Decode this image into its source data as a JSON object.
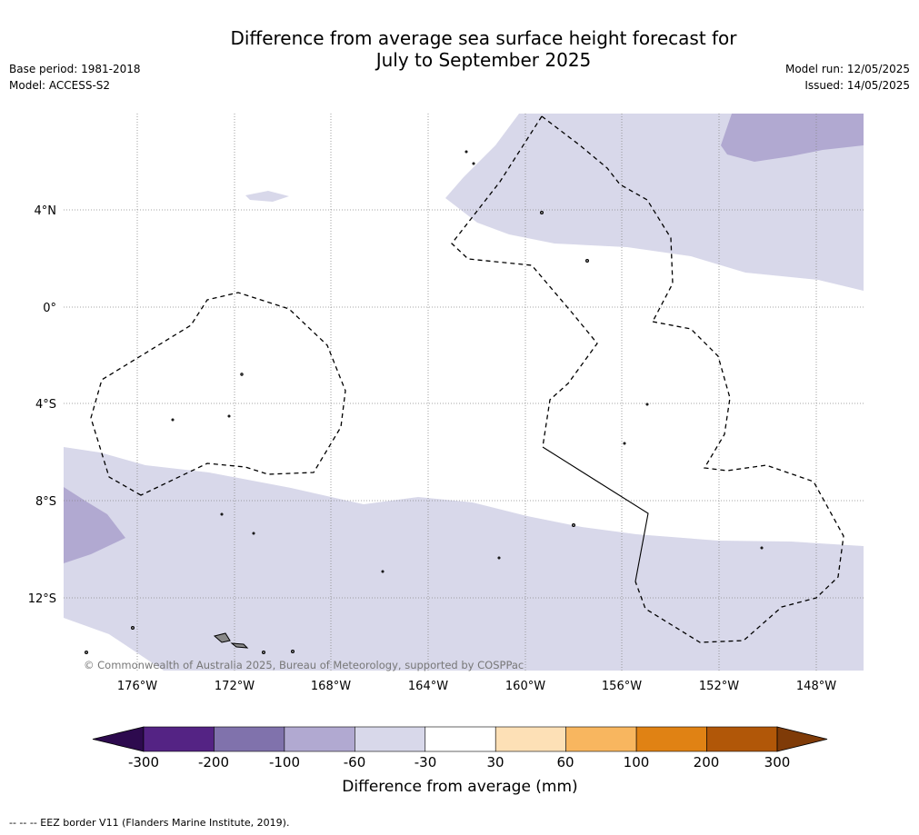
{
  "title_line1": "Difference from average sea surface height forecast for",
  "title_line2": "July to September 2025",
  "meta_left": {
    "base_period": "Base period: 1981-2018",
    "model": "Model: ACCESS-S2"
  },
  "meta_right": {
    "model_run": "Model run: 12/05/2025",
    "issued": "Issued: 14/05/2025"
  },
  "copyright": "© Commonwealth of Australia 2025, Bureau of Meteorology, supported by COSPPac",
  "lon_labels": [
    "176°W",
    "172°W",
    "168°W",
    "164°W",
    "160°W",
    "156°W",
    "152°W",
    "148°W"
  ],
  "lat_labels": [
    "4°N",
    "0°",
    "4°S",
    "8°S",
    "12°S"
  ],
  "colorbar": {
    "label": "Difference from average (mm)",
    "ticks": [
      "-300",
      "-200",
      "-100",
      "-60",
      "-30",
      "30",
      "60",
      "100",
      "200",
      "300"
    ],
    "colors": [
      "#2d0a4e",
      "#542384",
      "#8072ac",
      "#b1a9d1",
      "#d8d8ea",
      "#ffffff",
      "#fde0b6",
      "#f8b65f",
      "#e08214",
      "#b15708",
      "#7f3b08"
    ]
  },
  "footer": "--  --  -- EEZ border V11 (Flanders Marine Institute, 2019)."
}
